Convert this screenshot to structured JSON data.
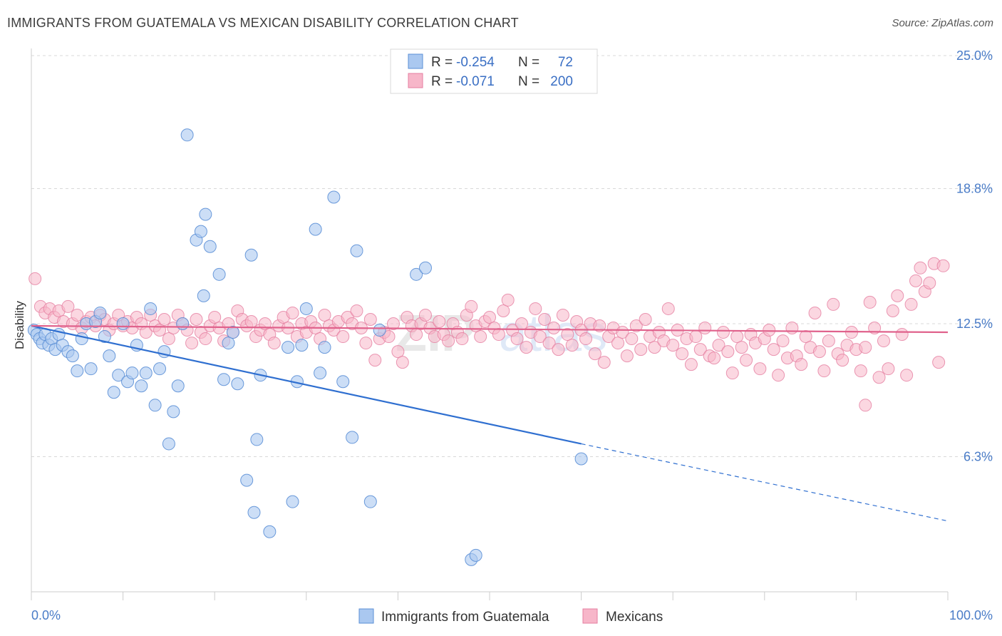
{
  "title": "IMMIGRANTS FROM GUATEMALA VS MEXICAN DISABILITY CORRELATION CHART",
  "source": "Source: ZipAtlas.com",
  "colors": {
    "blue_fill": "#aac8f0",
    "blue_stroke": "#5b8fd6",
    "blue_line": "#2f6fd0",
    "pink_fill": "#f7b6c9",
    "pink_stroke": "#e57ea0",
    "pink_line": "#e0628c",
    "tick_label": "#4a7cc7",
    "grid": "#d8d8d8"
  },
  "legend": {
    "rows": [
      {
        "r_label": "R =",
        "r_value": "-0.254",
        "n_label": "N =",
        "n_value": "72"
      },
      {
        "r_label": "R =",
        "r_value": "-0.071",
        "n_label": "N =",
        "n_value": "200"
      }
    ]
  },
  "bottom_legend": [
    "Immigrants from Guatemala",
    "Mexicans"
  ],
  "chart_data": {
    "type": "scatter",
    "title": "IMMIGRANTS FROM GUATEMALA VS MEXICAN DISABILITY CORRELATION CHART",
    "xlabel": "",
    "ylabel": "Disability",
    "xlim": [
      0,
      100
    ],
    "ylim": [
      0,
      25.0
    ],
    "x_tick_labels": [
      "0.0%",
      "100.0%"
    ],
    "y_ticks": [
      6.3,
      12.5,
      18.8,
      25.0
    ],
    "y_tick_labels": [
      "6.3%",
      "12.5%",
      "18.8%",
      "25.0%"
    ],
    "grid": "horizontal dashed",
    "legend_position": "top-center",
    "series": [
      {
        "name": "Immigrants from Guatemala",
        "r": -0.254,
        "n": 72,
        "trend": {
          "x": [
            0,
            60
          ],
          "y": [
            12.4,
            6.9
          ],
          "dashed_to": [
            100,
            3.3
          ]
        },
        "points": [
          [
            0.3,
            12.2
          ],
          [
            0.6,
            12.0
          ],
          [
            0.9,
            11.8
          ],
          [
            1.2,
            11.6
          ],
          [
            1.5,
            12.0
          ],
          [
            1.9,
            11.5
          ],
          [
            2.2,
            11.8
          ],
          [
            2.6,
            11.3
          ],
          [
            3.0,
            12.0
          ],
          [
            3.4,
            11.5
          ],
          [
            4.0,
            11.2
          ],
          [
            4.5,
            11.0
          ],
          [
            5.0,
            10.3
          ],
          [
            5.5,
            11.8
          ],
          [
            6.0,
            12.5
          ],
          [
            6.5,
            10.4
          ],
          [
            7.0,
            12.6
          ],
          [
            7.5,
            13.0
          ],
          [
            8.0,
            11.9
          ],
          [
            8.5,
            11.0
          ],
          [
            9.0,
            9.3
          ],
          [
            9.5,
            10.1
          ],
          [
            10.0,
            12.5
          ],
          [
            10.5,
            9.8
          ],
          [
            11.0,
            10.2
          ],
          [
            11.5,
            11.5
          ],
          [
            12.0,
            9.6
          ],
          [
            12.5,
            10.2
          ],
          [
            13.0,
            13.2
          ],
          [
            13.5,
            8.7
          ],
          [
            14.0,
            10.4
          ],
          [
            14.5,
            11.2
          ],
          [
            15.0,
            6.9
          ],
          [
            15.5,
            8.4
          ],
          [
            16.0,
            9.6
          ],
          [
            16.5,
            12.5
          ],
          [
            17.0,
            21.3
          ],
          [
            18.0,
            16.4
          ],
          [
            18.5,
            16.8
          ],
          [
            18.8,
            13.8
          ],
          [
            19.0,
            17.6
          ],
          [
            19.5,
            16.1
          ],
          [
            20.5,
            14.8
          ],
          [
            21.0,
            9.9
          ],
          [
            21.5,
            11.6
          ],
          [
            22.0,
            12.1
          ],
          [
            22.5,
            9.7
          ],
          [
            23.5,
            5.2
          ],
          [
            24.0,
            15.7
          ],
          [
            24.3,
            3.7
          ],
          [
            24.6,
            7.1
          ],
          [
            25.0,
            10.1
          ],
          [
            26.0,
            2.8
          ],
          [
            28.0,
            11.4
          ],
          [
            28.5,
            4.2
          ],
          [
            29.0,
            9.8
          ],
          [
            29.5,
            11.5
          ],
          [
            30.0,
            13.2
          ],
          [
            31.0,
            16.9
          ],
          [
            31.5,
            10.2
          ],
          [
            32.0,
            11.4
          ],
          [
            33.0,
            18.4
          ],
          [
            34.0,
            9.8
          ],
          [
            35.0,
            7.2
          ],
          [
            35.5,
            15.9
          ],
          [
            37.0,
            4.2
          ],
          [
            38.0,
            12.2
          ],
          [
            42.0,
            14.8
          ],
          [
            43.0,
            15.1
          ],
          [
            48.0,
            1.5
          ],
          [
            48.5,
            1.7
          ],
          [
            60.0,
            6.2
          ]
        ]
      },
      {
        "name": "Mexicans",
        "r": -0.071,
        "n": 200,
        "trend": {
          "x": [
            0,
            100
          ],
          "y": [
            12.4,
            12.1
          ]
        },
        "points": [
          [
            0.4,
            14.6
          ],
          [
            1.0,
            13.3
          ],
          [
            1.5,
            13.0
          ],
          [
            2.0,
            13.2
          ],
          [
            2.5,
            12.8
          ],
          [
            3.0,
            13.1
          ],
          [
            3.5,
            12.6
          ],
          [
            4.0,
            13.3
          ],
          [
            4.5,
            12.5
          ],
          [
            5.0,
            12.9
          ],
          [
            5.5,
            12.3
          ],
          [
            6.0,
            12.6
          ],
          [
            6.5,
            12.8
          ],
          [
            7.0,
            12.4
          ],
          [
            7.5,
            12.9
          ],
          [
            8.0,
            12.7
          ],
          [
            8.5,
            12.2
          ],
          [
            9.0,
            12.5
          ],
          [
            9.5,
            12.9
          ],
          [
            10.0,
            12.4
          ],
          [
            10.5,
            12.6
          ],
          [
            11.0,
            12.3
          ],
          [
            11.5,
            12.8
          ],
          [
            12.0,
            12.5
          ],
          [
            12.5,
            12.1
          ],
          [
            13.0,
            12.9
          ],
          [
            13.5,
            12.4
          ],
          [
            14.0,
            12.2
          ],
          [
            14.5,
            12.7
          ],
          [
            15.0,
            11.8
          ],
          [
            15.5,
            12.3
          ],
          [
            16.0,
            12.9
          ],
          [
            16.5,
            12.5
          ],
          [
            17.0,
            12.2
          ],
          [
            17.5,
            11.6
          ],
          [
            18.0,
            12.7
          ],
          [
            18.5,
            12.1
          ],
          [
            19.0,
            11.8
          ],
          [
            19.5,
            12.4
          ],
          [
            20.0,
            12.8
          ],
          [
            20.5,
            12.3
          ],
          [
            21.0,
            11.7
          ],
          [
            21.5,
            12.5
          ],
          [
            22.0,
            12.1
          ],
          [
            22.5,
            13.1
          ],
          [
            23.0,
            12.7
          ],
          [
            23.5,
            12.4
          ],
          [
            24.0,
            12.6
          ],
          [
            24.5,
            11.9
          ],
          [
            25.0,
            12.2
          ],
          [
            25.5,
            12.5
          ],
          [
            26.0,
            12.0
          ],
          [
            26.5,
            11.6
          ],
          [
            27.0,
            12.4
          ],
          [
            27.5,
            12.8
          ],
          [
            28.0,
            12.3
          ],
          [
            28.5,
            13.0
          ],
          [
            29.0,
            11.9
          ],
          [
            29.5,
            12.5
          ],
          [
            30.0,
            12.1
          ],
          [
            30.5,
            12.6
          ],
          [
            31.0,
            12.3
          ],
          [
            31.5,
            11.8
          ],
          [
            32.0,
            12.9
          ],
          [
            32.5,
            12.4
          ],
          [
            33.0,
            12.2
          ],
          [
            33.5,
            12.6
          ],
          [
            34.0,
            11.9
          ],
          [
            34.5,
            12.8
          ],
          [
            35.0,
            12.5
          ],
          [
            35.5,
            13.1
          ],
          [
            36.0,
            12.3
          ],
          [
            36.5,
            11.6
          ],
          [
            37.0,
            12.7
          ],
          [
            37.5,
            10.8
          ],
          [
            38.0,
            11.8
          ],
          [
            38.5,
            12.1
          ],
          [
            39.0,
            11.9
          ],
          [
            39.5,
            12.5
          ],
          [
            40.0,
            11.2
          ],
          [
            40.5,
            10.7
          ],
          [
            41.0,
            12.8
          ],
          [
            41.5,
            12.4
          ],
          [
            42.0,
            12.0
          ],
          [
            42.5,
            12.5
          ],
          [
            43.0,
            12.9
          ],
          [
            43.5,
            12.3
          ],
          [
            44.0,
            11.9
          ],
          [
            44.5,
            12.6
          ],
          [
            45.0,
            12.0
          ],
          [
            45.5,
            11.7
          ],
          [
            46.0,
            12.5
          ],
          [
            46.5,
            12.1
          ],
          [
            47.0,
            11.8
          ],
          [
            47.5,
            12.9
          ],
          [
            48.0,
            13.3
          ],
          [
            48.5,
            12.4
          ],
          [
            49.0,
            11.9
          ],
          [
            49.5,
            12.6
          ],
          [
            50.0,
            12.8
          ],
          [
            50.5,
            12.3
          ],
          [
            51.0,
            12.0
          ],
          [
            51.5,
            13.1
          ],
          [
            52.0,
            13.6
          ],
          [
            52.5,
            12.2
          ],
          [
            53.0,
            11.8
          ],
          [
            53.5,
            12.5
          ],
          [
            54.0,
            11.4
          ],
          [
            54.5,
            12.1
          ],
          [
            55.0,
            13.2
          ],
          [
            55.5,
            11.9
          ],
          [
            56.0,
            12.7
          ],
          [
            56.5,
            11.6
          ],
          [
            57.0,
            12.3
          ],
          [
            57.5,
            11.3
          ],
          [
            58.0,
            12.9
          ],
          [
            58.5,
            12.0
          ],
          [
            59.0,
            11.5
          ],
          [
            59.5,
            12.6
          ],
          [
            60.0,
            12.2
          ],
          [
            60.5,
            11.8
          ],
          [
            61.0,
            12.5
          ],
          [
            61.5,
            11.1
          ],
          [
            62.0,
            12.4
          ],
          [
            62.5,
            10.7
          ],
          [
            63.0,
            11.9
          ],
          [
            63.5,
            12.3
          ],
          [
            64.0,
            11.6
          ],
          [
            64.5,
            12.1
          ],
          [
            65.0,
            11.0
          ],
          [
            65.5,
            11.8
          ],
          [
            66.0,
            12.4
          ],
          [
            66.5,
            11.3
          ],
          [
            67.0,
            12.7
          ],
          [
            67.5,
            11.9
          ],
          [
            68.0,
            11.4
          ],
          [
            68.5,
            12.1
          ],
          [
            69.0,
            11.7
          ],
          [
            69.5,
            13.2
          ],
          [
            70.0,
            11.5
          ],
          [
            70.5,
            12.2
          ],
          [
            71.0,
            11.1
          ],
          [
            71.5,
            11.8
          ],
          [
            72.0,
            10.6
          ],
          [
            72.5,
            11.9
          ],
          [
            73.0,
            11.3
          ],
          [
            73.5,
            12.3
          ],
          [
            74.0,
            11.0
          ],
          [
            74.5,
            10.9
          ],
          [
            75.0,
            11.5
          ],
          [
            75.5,
            12.1
          ],
          [
            76.0,
            11.2
          ],
          [
            76.5,
            10.2
          ],
          [
            77.0,
            11.9
          ],
          [
            77.5,
            11.4
          ],
          [
            78.0,
            10.8
          ],
          [
            78.5,
            12.0
          ],
          [
            79.0,
            11.6
          ],
          [
            79.5,
            10.4
          ],
          [
            80.0,
            11.8
          ],
          [
            80.5,
            12.2
          ],
          [
            81.0,
            11.3
          ],
          [
            81.5,
            10.1
          ],
          [
            82.0,
            11.7
          ],
          [
            82.5,
            10.9
          ],
          [
            83.0,
            12.3
          ],
          [
            83.5,
            11.0
          ],
          [
            84.0,
            10.6
          ],
          [
            84.5,
            11.9
          ],
          [
            85.0,
            11.4
          ],
          [
            85.5,
            13.0
          ],
          [
            86.0,
            11.2
          ],
          [
            86.5,
            10.3
          ],
          [
            87.0,
            11.7
          ],
          [
            87.5,
            13.4
          ],
          [
            88.0,
            11.1
          ],
          [
            88.5,
            10.8
          ],
          [
            89.0,
            11.5
          ],
          [
            89.5,
            12.1
          ],
          [
            90.0,
            11.3
          ],
          [
            90.5,
            10.3
          ],
          [
            91.0,
            11.4
          ],
          [
            91.5,
            13.5
          ],
          [
            92.0,
            12.3
          ],
          [
            92.5,
            10.0
          ],
          [
            93.0,
            11.7
          ],
          [
            93.5,
            10.4
          ],
          [
            94.0,
            13.1
          ],
          [
            94.5,
            13.8
          ],
          [
            95.0,
            12.0
          ],
          [
            95.5,
            10.1
          ],
          [
            96.0,
            13.4
          ],
          [
            96.5,
            14.5
          ],
          [
            97.0,
            15.1
          ],
          [
            97.5,
            14.0
          ],
          [
            98.0,
            14.4
          ],
          [
            98.5,
            15.3
          ],
          [
            99.0,
            10.7
          ],
          [
            99.5,
            15.2
          ],
          [
            91.0,
            8.7
          ]
        ]
      }
    ]
  }
}
